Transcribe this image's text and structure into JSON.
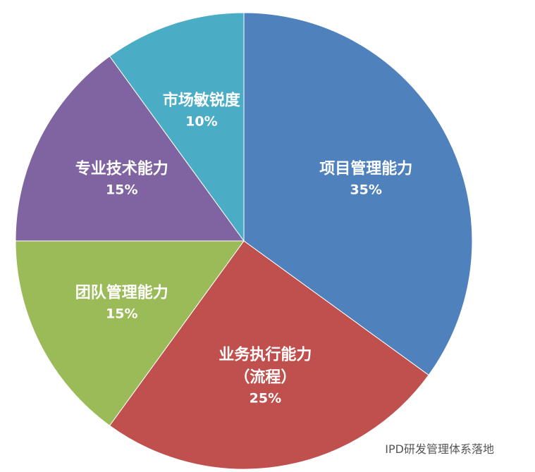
{
  "chart_data": {
    "type": "pie",
    "categories": [
      "项目管理能力",
      "业务执行能力\n（流程）",
      "团队管理能力",
      "专业技术能力",
      "市场敏锐度"
    ],
    "values": [
      35,
      25,
      15,
      15,
      10
    ],
    "value_labels": [
      "35%",
      "25%",
      "15%",
      "15%",
      "10%"
    ],
    "colors": [
      "#4f81bd",
      "#c0504d",
      "#9bbb59",
      "#8064a2",
      "#4bacc6"
    ]
  },
  "watermark": "IPD研发管理体系落地"
}
